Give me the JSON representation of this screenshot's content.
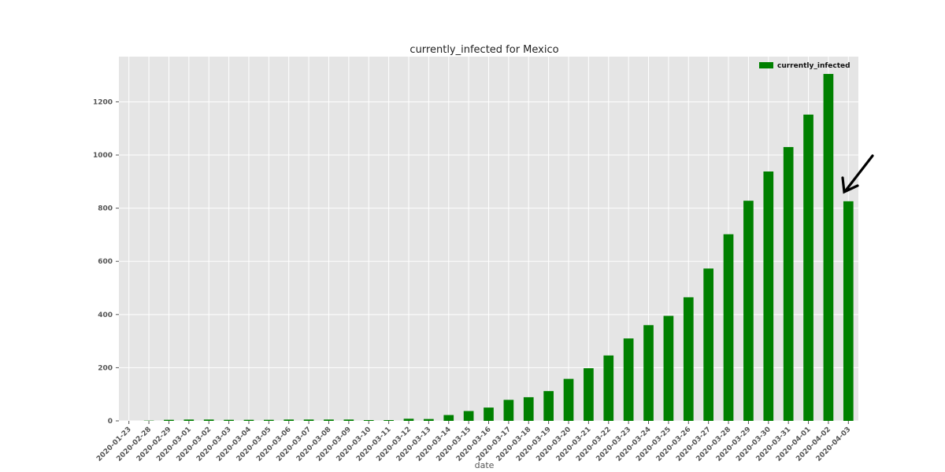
{
  "chart_data": {
    "type": "bar",
    "title": "currently_infected for Mexico",
    "xlabel": "date",
    "ylabel": "",
    "ylim": [
      0,
      1370
    ],
    "yticks": [
      0,
      200,
      400,
      600,
      800,
      1000,
      1200
    ],
    "grid": true,
    "legend_position": "top-right",
    "categories": [
      "2020-01-23",
      "2020-02-28",
      "2020-02-29",
      "2020-03-01",
      "2020-03-02",
      "2020-03-03",
      "2020-03-04",
      "2020-03-05",
      "2020-03-06",
      "2020-03-07",
      "2020-03-08",
      "2020-03-09",
      "2020-03-10",
      "2020-03-11",
      "2020-03-12",
      "2020-03-13",
      "2020-03-14",
      "2020-03-15",
      "2020-03-16",
      "2020-03-17",
      "2020-03-18",
      "2020-03-19",
      "2020-03-20",
      "2020-03-21",
      "2020-03-22",
      "2020-03-23",
      "2020-03-24",
      "2020-03-25",
      "2020-03-26",
      "2020-03-27",
      "2020-03-28",
      "2020-03-29",
      "2020-03-30",
      "2020-03-31",
      "2020-04-01",
      "2020-04-02",
      "2020-04-03"
    ],
    "series": [
      {
        "name": "currently_infected",
        "color": "#008000",
        "values": [
          0,
          1,
          4,
          5,
          5,
          4,
          4,
          4,
          5,
          5,
          5,
          5,
          3,
          3,
          8,
          7,
          22,
          37,
          50,
          79,
          89,
          112,
          158,
          198,
          246,
          310,
          360,
          395,
          465,
          573,
          702,
          828,
          938,
          1030,
          1152,
          1305,
          826
        ]
      }
    ]
  },
  "annotation": {
    "type": "arrow",
    "color": "#000000",
    "target_category": "2020-04-03"
  }
}
